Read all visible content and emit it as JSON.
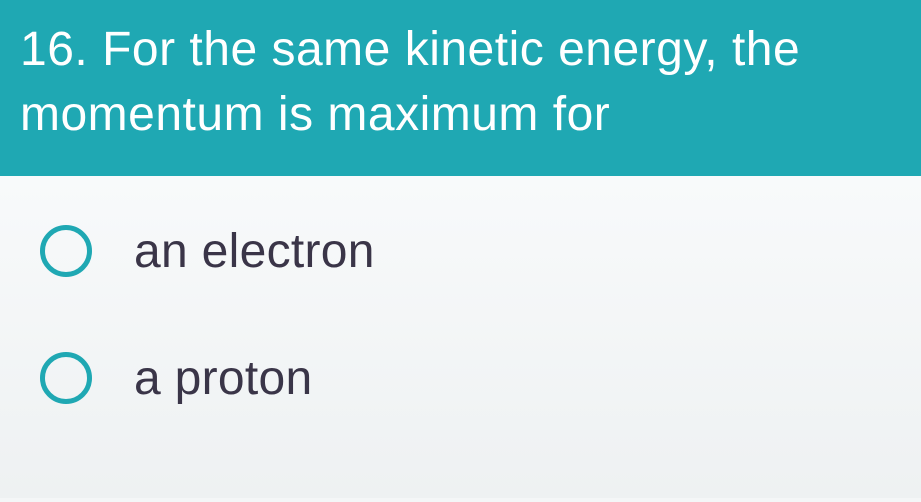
{
  "question": {
    "number": "16.",
    "text": "For the same kinetic energy, the momentum is maximum for",
    "header_bg": "#1fa8b3",
    "header_color": "#ffffff",
    "header_fontsize": 48
  },
  "options": [
    {
      "label": "an electron",
      "selected": false
    },
    {
      "label": "a proton",
      "selected": false
    }
  ],
  "styling": {
    "radio_border_color": "#1fa8b3",
    "radio_border_width": 5,
    "option_text_color": "#3a3548",
    "option_fontsize": 48,
    "body_bg": "#f4f6f7"
  }
}
